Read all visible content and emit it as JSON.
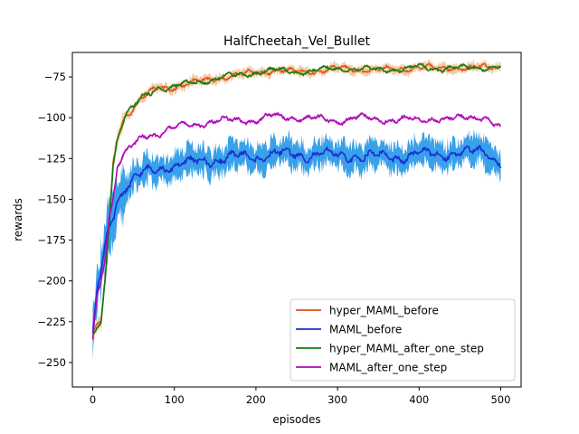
{
  "chart_data": {
    "type": "line",
    "title": "HalfCheetah_Vel_Bullet",
    "xlabel": "episodes",
    "ylabel": "rewards",
    "xlim": [
      -25,
      525
    ],
    "ylim": [
      -265,
      -60
    ],
    "xticks": [
      0,
      100,
      200,
      300,
      400,
      500
    ],
    "xtick_labels": [
      "0",
      "100",
      "200",
      "300",
      "400",
      "500"
    ],
    "yticks": [
      -250,
      -225,
      -200,
      -175,
      -150,
      -125,
      -100,
      -75
    ],
    "ytick_labels": [
      "−250",
      "−225",
      "−200",
      "−175",
      "−150",
      "−125",
      "−100",
      "−75"
    ],
    "grid": false,
    "legend_position": "lower right",
    "series": [
      {
        "name": "hyper_MAML_before",
        "color": "#d9531a",
        "band_color": "#f0b680",
        "x": [
          0,
          5,
          10,
          15,
          20,
          25,
          30,
          40,
          50,
          60,
          70,
          80,
          90,
          100,
          120,
          140,
          160,
          180,
          200,
          220,
          250,
          280,
          300,
          320,
          350,
          380,
          400,
          420,
          440,
          460,
          480,
          500
        ],
        "values": [
          -234,
          -228,
          -226,
          -200,
          -165,
          -128,
          -112,
          -98,
          -94,
          -88,
          -85,
          -81,
          -82,
          -81,
          -79,
          -77,
          -75,
          -74,
          -72,
          -71,
          -72,
          -71,
          -70,
          -70,
          -71,
          -70,
          -69,
          -70,
          -69,
          -70,
          -69,
          -68
        ]
      },
      {
        "name": "MAML_before",
        "color": "#1a2fd2",
        "band_color": "#2496e8",
        "x": [
          0,
          5,
          10,
          15,
          20,
          25,
          30,
          40,
          50,
          60,
          70,
          80,
          90,
          100,
          120,
          140,
          160,
          180,
          200,
          220,
          250,
          280,
          300,
          320,
          350,
          380,
          400,
          420,
          440,
          460,
          480,
          500
        ],
        "values": [
          -235,
          -207,
          -195,
          -180,
          -167,
          -160,
          -150,
          -142,
          -138,
          -135,
          -133,
          -131,
          -130,
          -129,
          -128,
          -126,
          -125,
          -124,
          -124,
          -122,
          -123,
          -122,
          -124,
          -123,
          -124,
          -124,
          -122,
          -123,
          -121,
          -122,
          -120,
          -127
        ]
      },
      {
        "name": "hyper_MAML_after_one_step",
        "color": "#127a12",
        "band_color": "#f0b680",
        "x": [
          0,
          5,
          10,
          15,
          20,
          25,
          30,
          40,
          50,
          60,
          70,
          80,
          90,
          100,
          120,
          140,
          160,
          180,
          200,
          220,
          250,
          280,
          300,
          320,
          350,
          380,
          400,
          420,
          440,
          460,
          480,
          500
        ],
        "values": [
          -234,
          -229,
          -227,
          -200,
          -165,
          -128,
          -113,
          -98,
          -94,
          -88,
          -85,
          -81,
          -82,
          -81,
          -79,
          -77,
          -75,
          -74,
          -72,
          -71,
          -72,
          -71,
          -70,
          -70,
          -71,
          -70,
          -69,
          -70,
          -69,
          -70,
          -69,
          -68
        ]
      },
      {
        "name": "MAML_after_one_step",
        "color": "#b00ab8",
        "band_color": "#b00ab8",
        "x": [
          0,
          5,
          10,
          15,
          20,
          25,
          30,
          40,
          50,
          60,
          70,
          80,
          90,
          100,
          120,
          140,
          160,
          180,
          200,
          220,
          250,
          280,
          300,
          320,
          350,
          380,
          400,
          420,
          440,
          460,
          480,
          500
        ],
        "values": [
          -236,
          -210,
          -200,
          -185,
          -160,
          -150,
          -130,
          -122,
          -117,
          -112,
          -110,
          -110,
          -108,
          -106,
          -104,
          -103,
          -102,
          -101,
          -102,
          -99,
          -100,
          -101,
          -102,
          -100,
          -101,
          -101,
          -102,
          -100,
          -101,
          -100,
          -99,
          -107
        ]
      }
    ]
  }
}
